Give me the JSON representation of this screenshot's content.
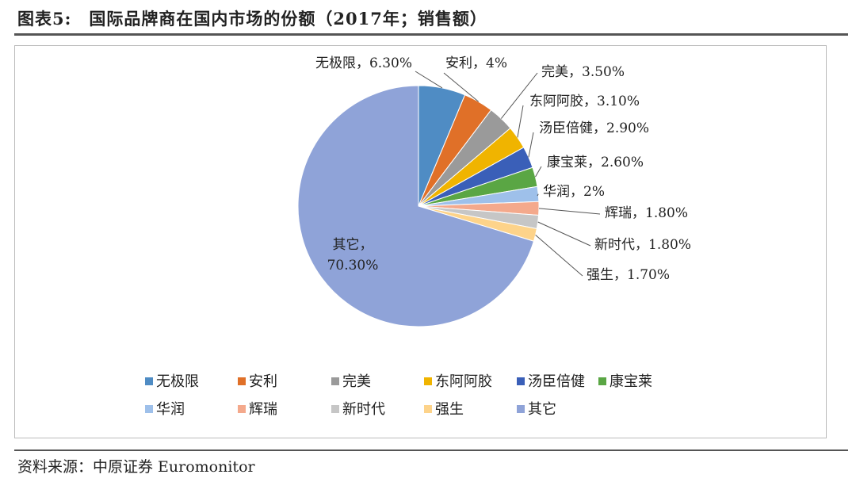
{
  "figure_label": "图表5:",
  "title": "国际品牌商在国内市场的份额（2017年；销售额）",
  "source": "资料来源：中原证券 Euromonitor",
  "chart_data": {
    "type": "pie",
    "unit": "%",
    "start_angle": "12 o'clock",
    "direction": "clockwise",
    "legend_placement": "bottom",
    "categories": [
      "无极限",
      "安利",
      "完美",
      "东阿阿胶",
      "汤臣倍健",
      "康宝莱",
      "华润",
      "辉瑞",
      "新时代",
      "强生",
      "其它"
    ],
    "values": [
      6.3,
      4,
      3.5,
      3.1,
      2.9,
      2.6,
      2,
      1.8,
      1.8,
      1.7,
      70.3
    ],
    "data_labels": [
      "无极限，6.30%",
      "安利，4%",
      "完美，3.50%",
      "东阿阿胶，3.10%",
      "汤臣倍健，2.90%",
      "康宝莱，2.60%",
      "华润，2%",
      "辉瑞，1.80%",
      "新时代，1.80%",
      "强生，1.70%",
      "其它，70.30%"
    ],
    "colors": [
      "#4f8cc4",
      "#e07028",
      "#9a9a9a",
      "#f0b400",
      "#3a5fb8",
      "#5aa644",
      "#9ec0ea",
      "#f4a98c",
      "#c6c6c6",
      "#fdd38a",
      "#8fa3d8"
    ]
  }
}
